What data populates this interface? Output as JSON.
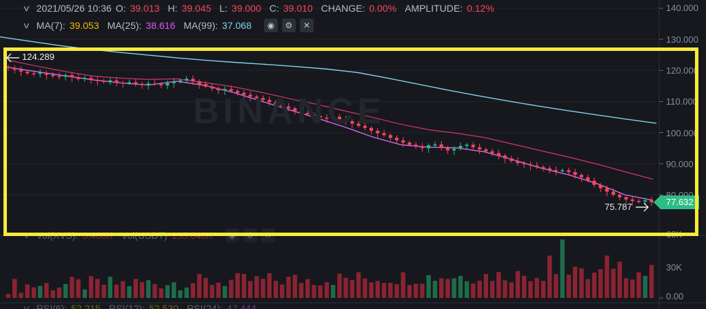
{
  "ohlc_bar": {
    "date": "2021/05/26 10:36",
    "o_label": "O:",
    "o": "39.013",
    "h_label": "H:",
    "h": "39.045",
    "l_label": "L:",
    "l": "39.000",
    "c_label": "C:",
    "c": "39.010",
    "change_label": "CHANGE:",
    "change": "0.00%",
    "amplitude_label": "AMPLITUDE:",
    "amplitude": "0.12%"
  },
  "ma_bar": {
    "ma7_label": "MA(7):",
    "ma7": "39.053",
    "ma25_label": "MA(25):",
    "ma25": "38.616",
    "ma99_label": "MA(99):",
    "ma99": "37.068",
    "icons": [
      "eye-icon",
      "gear-icon",
      "close-icon"
    ]
  },
  "vol_bar": {
    "vol_label": "Vol(XVS):",
    "vol": "3.486K",
    "usdt_label": "Vol(USDT)",
    "usdt": "135.048K"
  },
  "rsi_bar": {
    "rsi6_label": "RSI(6):",
    "rsi6": "52.215",
    "rsi12_label": "RSI(12):",
    "rsi12": "52.530",
    "rsi24_label": "RSI(24):",
    "rsi24": "47.444"
  },
  "watermark": "BINANCE",
  "price_axis": [
    "140.000",
    "130.000",
    "120.000",
    "110.000",
    "100.000",
    "90.000",
    "80.000"
  ],
  "volume_axis": [
    "60K",
    "30K",
    "0.00"
  ],
  "current_price": "77.632",
  "annotations": {
    "high": "124.289",
    "low": "75.787"
  },
  "colors": {
    "up": "#2ebd85",
    "down": "#f6465d",
    "ma7": "#f0b90b",
    "ma25": "#e056fd",
    "ma99": "#7fd3e8",
    "highlight": "#f7ea3c"
  },
  "chart_data": {
    "type": "candlestick",
    "ylim": [
      72,
      142
    ],
    "y_ticks": [
      140,
      130,
      120,
      110,
      100,
      90,
      80
    ],
    "series": [
      {
        "name": "close",
        "values": [
          120.8,
          120.2,
          119.6,
          119.1,
          118.9,
          119.3,
          118.6,
          118.2,
          118.0,
          118.5,
          117.8,
          117.2,
          117.6,
          116.9,
          116.7,
          116.3,
          116.8,
          116.1,
          115.9,
          116.2,
          115.7,
          115.3,
          115.8,
          115.6,
          115.2,
          115.9,
          116.4,
          116.8,
          117.3,
          116.5,
          115.6,
          114.8,
          114.2,
          113.6,
          114.0,
          113.4,
          112.8,
          112.2,
          111.6,
          111.1,
          110.5,
          109.8,
          109.2,
          108.4,
          107.8,
          107.0,
          106.3,
          105.9,
          105.4,
          104.8,
          104.6,
          105.1,
          104.3,
          103.7,
          102.9,
          102.2,
          101.5,
          100.6,
          99.8,
          99.2,
          98.3,
          97.5,
          96.8,
          96.1,
          95.6,
          95.0,
          95.9,
          96.2,
          95.1,
          94.3,
          94.8,
          95.7,
          96.1,
          95.3,
          94.6,
          94.0,
          93.4,
          92.6,
          91.7,
          90.9,
          90.2,
          89.8,
          89.4,
          88.9,
          88.5,
          88.0,
          87.8,
          87.9,
          87.3,
          86.4,
          85.6,
          84.5,
          83.2,
          82.1,
          81.0,
          80.0,
          79.2,
          78.5,
          78.0,
          77.8,
          78.2,
          77.6
        ]
      },
      {
        "name": "MA(7)",
        "values": [
          121.0,
          119.6,
          118.3,
          117.0,
          116.0,
          115.3,
          116.5,
          115.2,
          113.0,
          110.2,
          107.4,
          104.7,
          101.8,
          98.6,
          96.1,
          95.3,
          95.1,
          93.8,
          91.3,
          88.6,
          86.4,
          83.6,
          80.0,
          78.2
        ]
      },
      {
        "name": "MA(25)",
        "values": [
          123.3,
          121.4,
          119.7,
          118.2,
          117.5,
          117.1,
          117.3,
          116.1,
          114.8,
          113.0,
          111.0,
          109.1,
          107.0,
          104.9,
          102.7,
          100.9,
          99.8,
          98.4,
          96.3,
          94.2,
          92.1,
          89.9,
          87.4,
          85.0
        ]
      },
      {
        "name": "MA(99)",
        "values": [
          130.8,
          129.4,
          128.0,
          126.8,
          125.8,
          124.9,
          124.0,
          123.2,
          122.5,
          121.9,
          121.2,
          120.4,
          119.3,
          117.5,
          115.6,
          113.7,
          111.9,
          110.2,
          108.6,
          107.1,
          105.7,
          104.3,
          103.0
        ]
      }
    ],
    "volume": {
      "ylim": [
        0,
        60000
      ],
      "y_ticks": [
        60000,
        30000,
        0
      ]
    }
  }
}
